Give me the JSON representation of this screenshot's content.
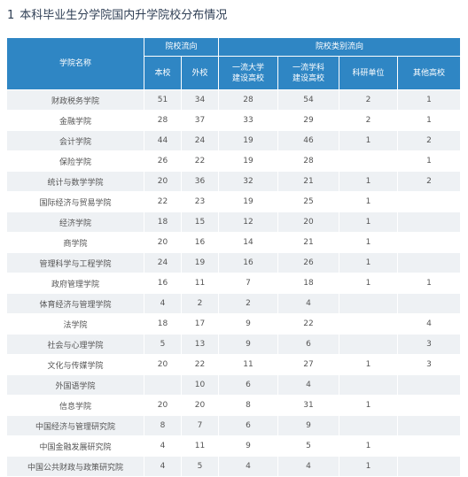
{
  "title": {
    "number": "1",
    "text": "本科毕业生分学院国内升学院校分布情况"
  },
  "table": {
    "group_headers": {
      "school_name": "学院名称",
      "flow": "院校流向",
      "category_flow": "院校类别流向"
    },
    "sub_headers": [
      "本校",
      "外校",
      "一流大学\n建设高校",
      "一流学科\n建设高校",
      "科研单位",
      "其他高校"
    ],
    "rows": [
      [
        "财政税务学院",
        "51",
        "34",
        "28",
        "54",
        "2",
        "1"
      ],
      [
        "金融学院",
        "28",
        "37",
        "33",
        "29",
        "2",
        "1"
      ],
      [
        "会计学院",
        "44",
        "24",
        "19",
        "46",
        "1",
        "2"
      ],
      [
        "保险学院",
        "26",
        "22",
        "19",
        "28",
        "",
        "1"
      ],
      [
        "统计与数学学院",
        "20",
        "36",
        "32",
        "21",
        "1",
        "2"
      ],
      [
        "国际经济与贸易学院",
        "22",
        "23",
        "19",
        "25",
        "1",
        ""
      ],
      [
        "经济学院",
        "18",
        "15",
        "12",
        "20",
        "1",
        ""
      ],
      [
        "商学院",
        "20",
        "16",
        "14",
        "21",
        "1",
        ""
      ],
      [
        "管理科学与工程学院",
        "24",
        "19",
        "16",
        "26",
        "1",
        ""
      ],
      [
        "政府管理学院",
        "16",
        "11",
        "7",
        "18",
        "1",
        "1"
      ],
      [
        "体育经济与管理学院",
        "4",
        "2",
        "2",
        "4",
        "",
        ""
      ],
      [
        "法学院",
        "18",
        "17",
        "9",
        "22",
        "",
        "4"
      ],
      [
        "社会与心理学院",
        "5",
        "13",
        "9",
        "6",
        "",
        "3"
      ],
      [
        "文化与传媒学院",
        "20",
        "22",
        "11",
        "27",
        "1",
        "3"
      ],
      [
        "外国语学院",
        "",
        "10",
        "6",
        "4",
        "",
        ""
      ],
      [
        "信息学院",
        "20",
        "20",
        "8",
        "31",
        "1",
        ""
      ],
      [
        "中国经济与管理研究院",
        "8",
        "7",
        "6",
        "9",
        "",
        ""
      ],
      [
        "中国金融发展研究院",
        "4",
        "11",
        "9",
        "5",
        "1",
        ""
      ],
      [
        "中国公共财政与政策研究院",
        "4",
        "5",
        "4",
        "4",
        "1",
        ""
      ]
    ]
  },
  "colors": {
    "header_bg": "#2f86c4",
    "stripe": "#eef1f4",
    "title_text": "#2f3f55"
  }
}
